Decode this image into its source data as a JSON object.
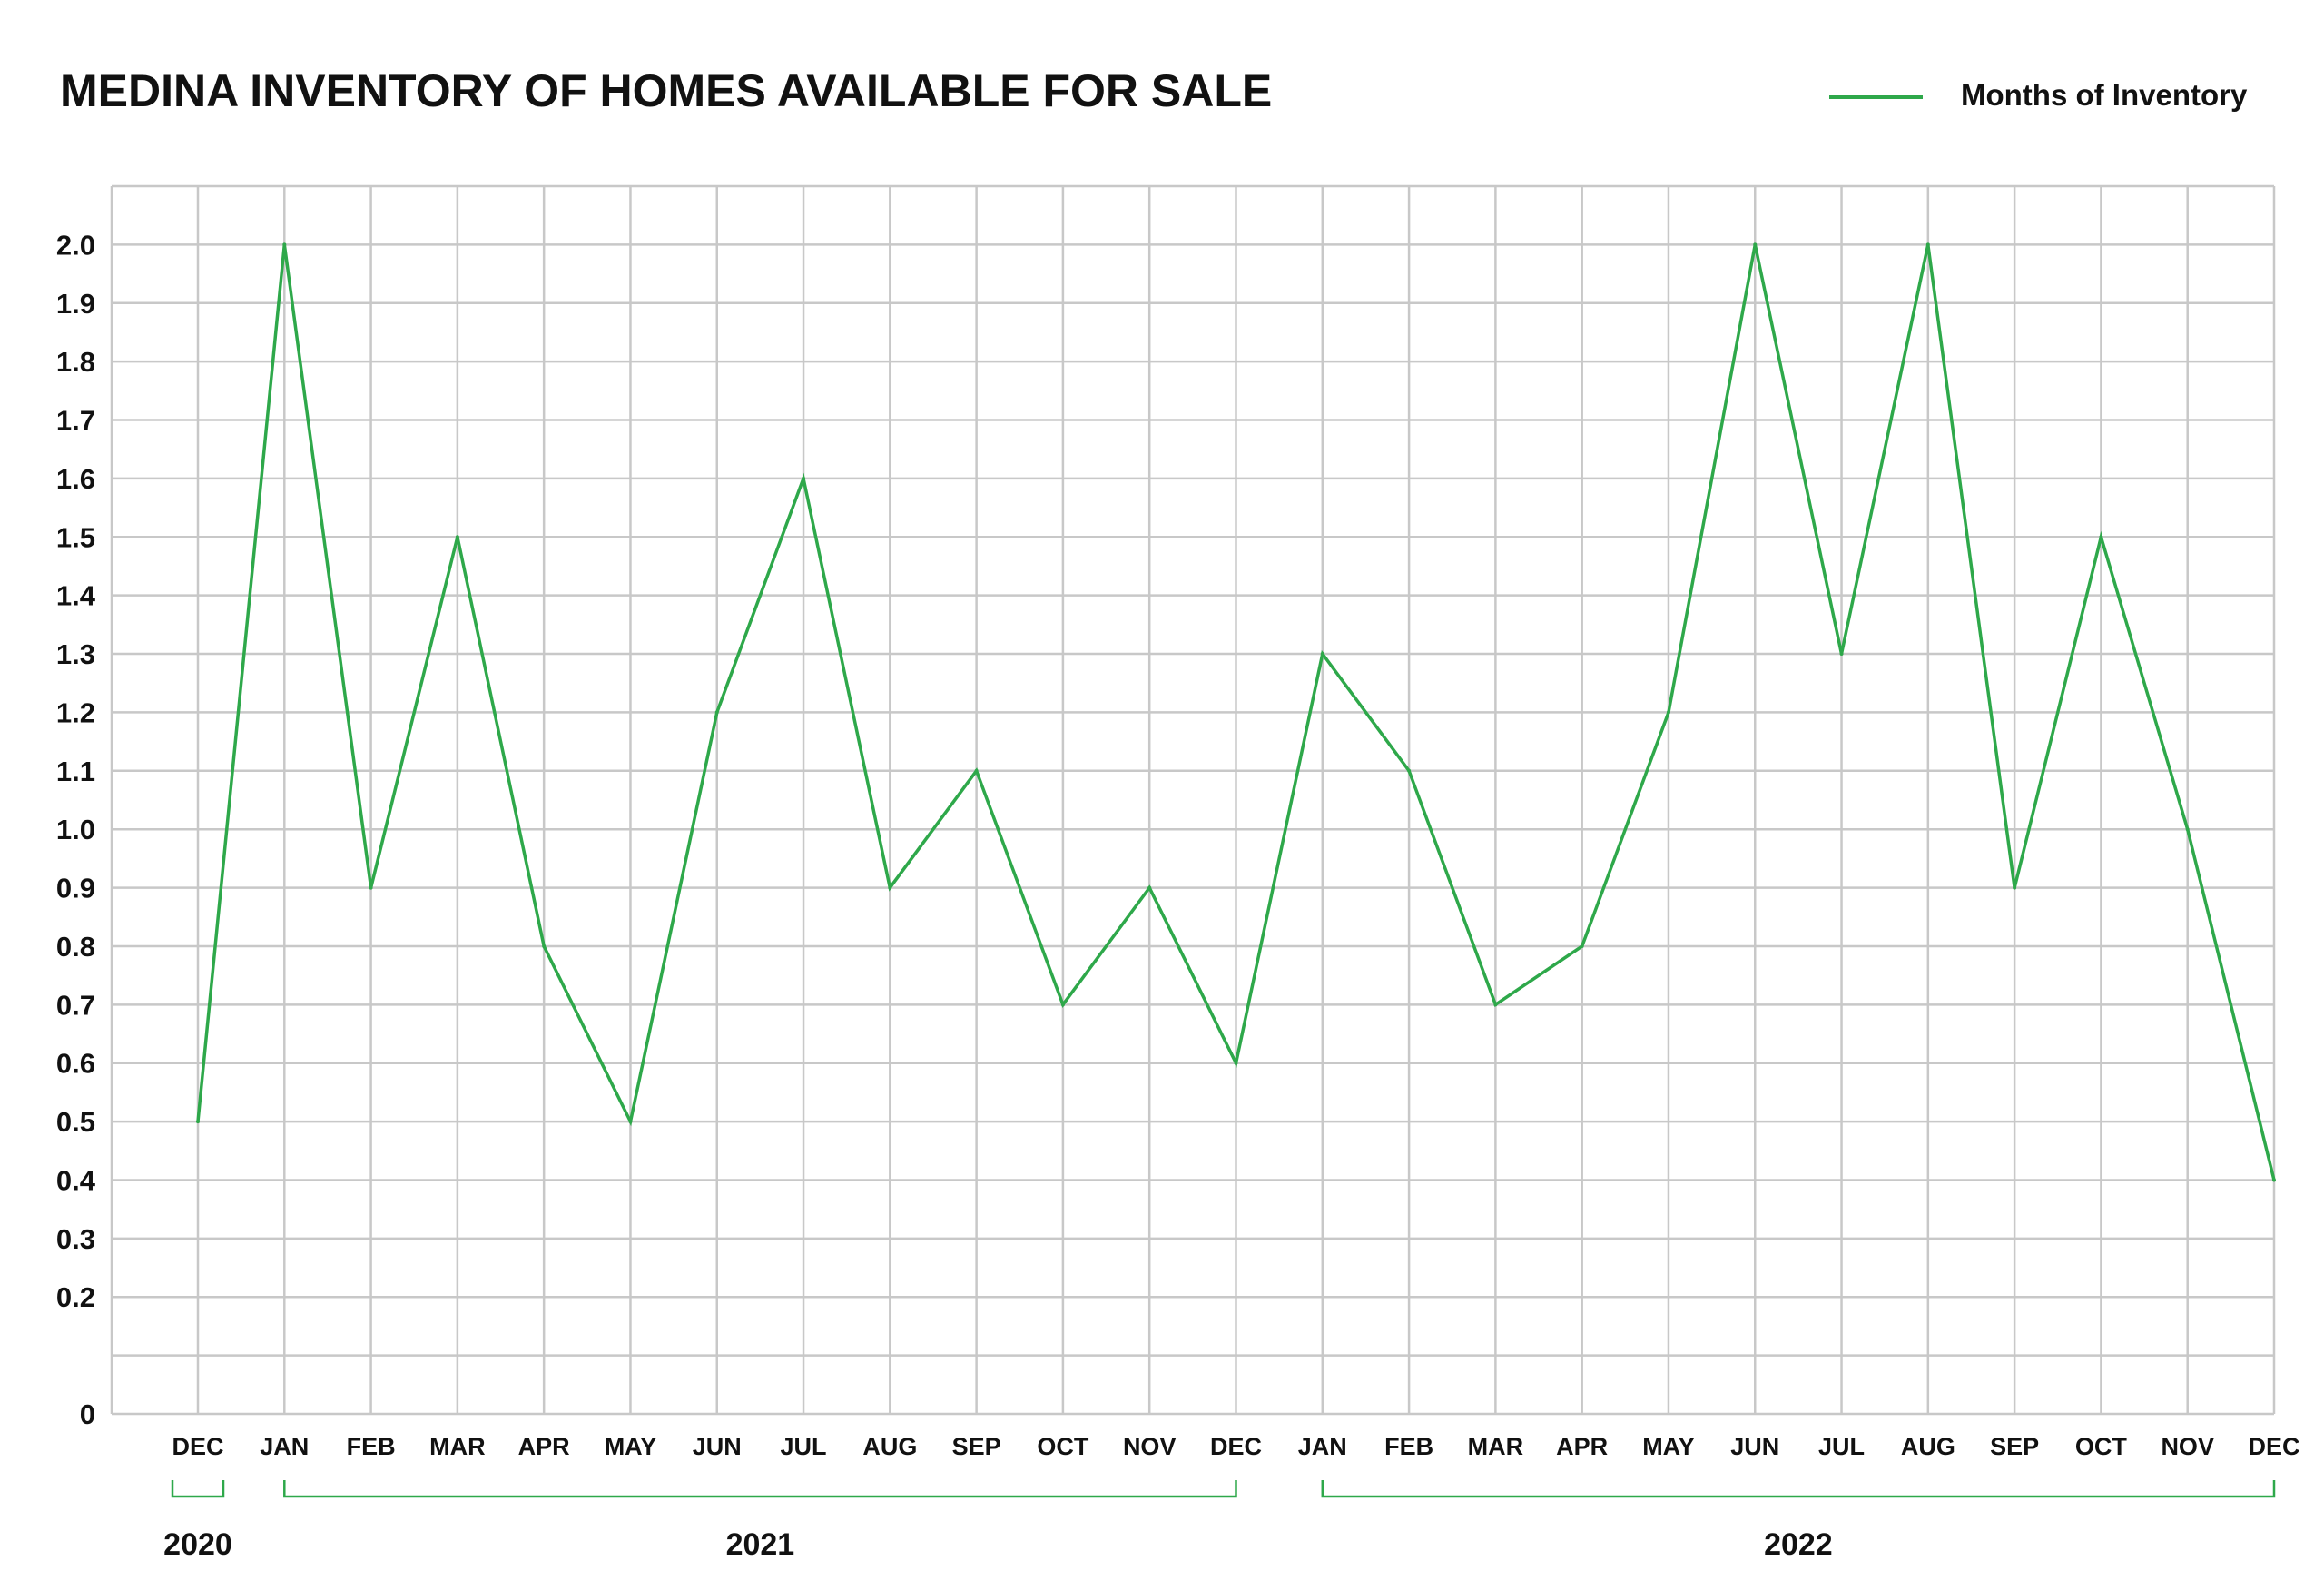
{
  "chart_data": {
    "type": "line",
    "title": "MEDINA INVENTORY OF HOMES AVAILABLE FOR SALE",
    "categories": [
      "DEC",
      "JAN",
      "FEB",
      "MAR",
      "APR",
      "MAY",
      "JUN",
      "JUL",
      "AUG",
      "SEP",
      "OCT",
      "NOV",
      "DEC",
      "JAN",
      "FEB",
      "MAR",
      "APR",
      "MAY",
      "JUN",
      "JUL",
      "AUG",
      "SEP",
      "OCT",
      "NOV",
      "DEC"
    ],
    "series": [
      {
        "name": "Months of Inventory",
        "color": "#2ea84a",
        "values": [
          0.5,
          2.0,
          0.9,
          1.5,
          0.8,
          0.5,
          1.2,
          1.6,
          0.9,
          1.1,
          0.7,
          0.9,
          0.6,
          1.3,
          1.1,
          0.7,
          0.8,
          1.2,
          2.0,
          1.3,
          2.0,
          0.9,
          1.5,
          1.0,
          0.4
        ]
      }
    ],
    "yticks": [
      "0",
      "0.2",
      "0.3",
      "0.4",
      "0.5",
      "0.6",
      "0.7",
      "0.8",
      "0.9",
      "1.0",
      "1.1",
      "1.2",
      "1.3",
      "1.4",
      "1.5",
      "1.6",
      "1.7",
      "1.8",
      "1.9",
      "2.0"
    ],
    "ylim": [
      0,
      2.1
    ],
    "grid": true,
    "legend_position": "top-right",
    "year_groups": [
      {
        "label": "2020",
        "start_index": 0,
        "end_index": 0
      },
      {
        "label": "2021",
        "start_index": 1,
        "end_index": 12
      },
      {
        "label": "2022",
        "start_index": 13,
        "end_index": 24
      }
    ],
    "colors": {
      "line": "#2ea84a",
      "grid": "#c8c8c8",
      "text": "#111111"
    }
  }
}
